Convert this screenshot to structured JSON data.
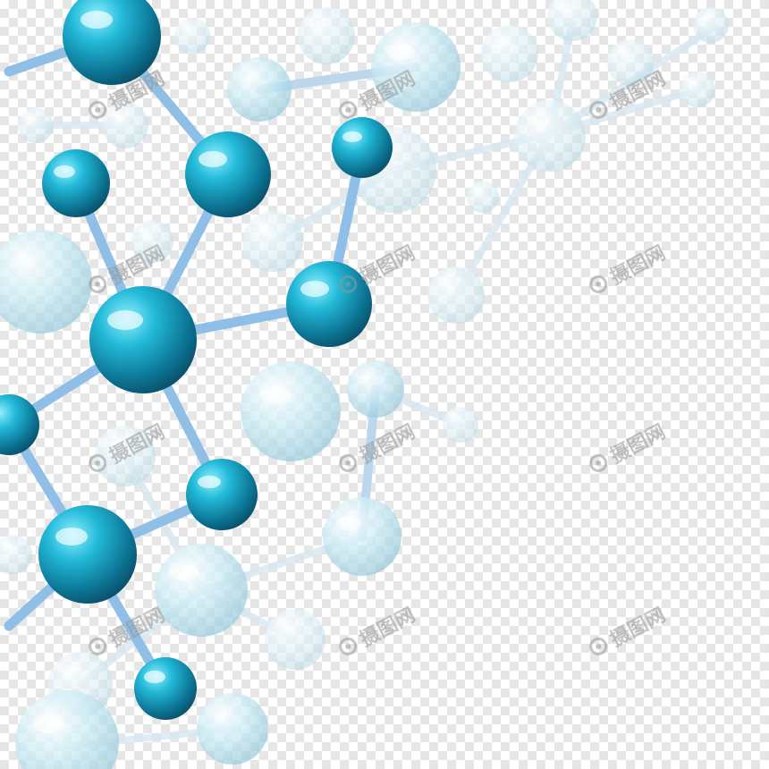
{
  "image": {
    "background": "transparency-checkerboard",
    "colors": {
      "checker_light": "#ffffff",
      "checker_dark": "#e6e6e6",
      "atom_solid": "#1aa3c2",
      "atom_solid_dark": "#0c5f7a",
      "atom_faded": "#cfe9f1",
      "bond": "#a9c9e8"
    }
  },
  "watermark": {
    "text": "摄图网",
    "logo_icon": "watermark-logo-icon"
  }
}
